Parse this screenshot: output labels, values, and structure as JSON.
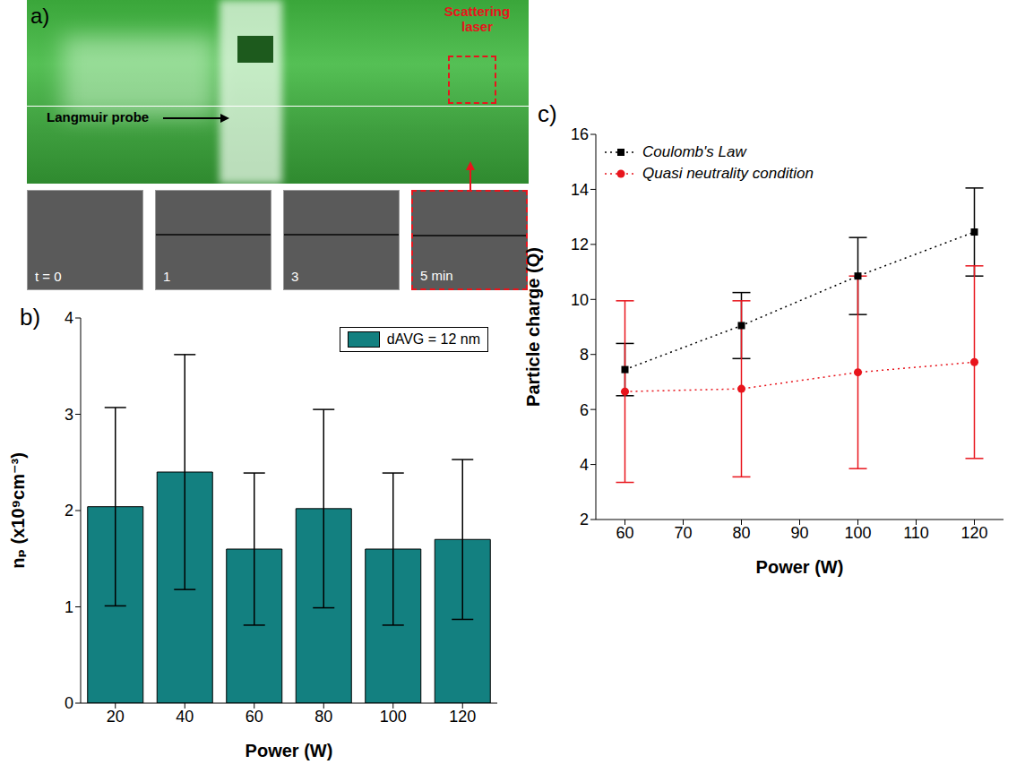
{
  "panel_a": {
    "panel_label": "a)",
    "labels": [
      "Langmuir probe",
      "Scattering laser"
    ],
    "frames": [
      "t = 0",
      "1",
      "3",
      "5 min"
    ]
  },
  "chart_data": [
    {
      "panel_label": "b)",
      "type": "bar",
      "categories": [
        "20",
        "40",
        "60",
        "80",
        "100",
        "120"
      ],
      "series": [
        {
          "name": "dAVG = 12 nm",
          "color": "#138080",
          "values": [
            2.04,
            2.4,
            1.6,
            2.02,
            1.6,
            1.7
          ],
          "errors": [
            1.03,
            1.22,
            0.79,
            1.03,
            0.79,
            0.83
          ]
        }
      ],
      "x_label": "Power (W)",
      "y_label": "nₚ (x10⁹cm⁻³)",
      "ylim": [
        0,
        4
      ],
      "yticks": [
        0,
        1,
        2,
        3,
        4
      ],
      "legend": "upper right"
    },
    {
      "panel_label": "c)",
      "type": "scatter",
      "x": [
        60,
        80,
        100,
        120
      ],
      "xlim": [
        55,
        125
      ],
      "xticks": [
        60,
        70,
        80,
        90,
        100,
        110,
        120
      ],
      "ylim": [
        2,
        16
      ],
      "yticks": [
        2,
        4,
        6,
        8,
        10,
        12,
        14,
        16
      ],
      "x_label": "Power (W)",
      "y_label": "Particle charge (Q)",
      "legend": "upper left",
      "series": [
        {
          "name": "Coulomb's Law",
          "color": "#000000",
          "marker": "square",
          "line_style": "dotted",
          "values": [
            7.45,
            9.05,
            10.85,
            12.45
          ],
          "errors": [
            0.95,
            1.2,
            1.4,
            1.6
          ]
        },
        {
          "name": "Quasi neutrality condition",
          "color": "#e8141c",
          "marker": "circle",
          "line_style": "dotted",
          "values": [
            6.65,
            6.75,
            7.35,
            7.72
          ],
          "errors": [
            3.3,
            3.2,
            3.5,
            3.5
          ]
        }
      ]
    }
  ]
}
